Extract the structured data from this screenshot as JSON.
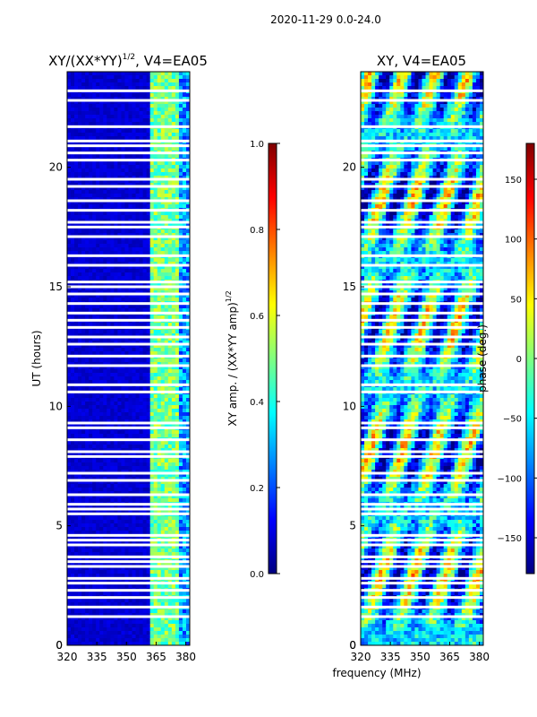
{
  "figure": {
    "suptitle": "2020-11-29 0.0-24.0",
    "shared_xlabel": "frequency (MHz)"
  },
  "chart_data": [
    {
      "type": "heatmap",
      "title_main": "XY/(XX*YY)",
      "title_exp": "1/2",
      "title_tail": ", V4=EA05",
      "xlim": [
        320,
        382
      ],
      "xticks": [
        320,
        335,
        350,
        365,
        380
      ],
      "ylabel": "UT (hours)",
      "ylim": [
        0,
        24
      ],
      "yticks": [
        0,
        5,
        10,
        15,
        20
      ],
      "colorbar": {
        "label_main": "XY amp. / (XX*YY amp)",
        "label_exp": "1/2",
        "range": [
          0.0,
          1.0
        ],
        "ticks": [
          "0.0",
          "0.2",
          "0.4",
          "0.6",
          "0.8",
          "1.0"
        ],
        "tick_values": [
          0.0,
          0.2,
          0.4,
          0.6,
          0.8,
          1.0
        ]
      }
    },
    {
      "type": "heatmap",
      "title": "XY, V4=EA05",
      "xlim": [
        320,
        382
      ],
      "xticks": [
        320,
        335,
        350,
        365,
        380
      ],
      "ylim": [
        0,
        24
      ],
      "yticks": [
        0,
        5,
        10,
        15,
        20
      ],
      "colorbar": {
        "label": "phase (deg.)",
        "range": [
          -180,
          180
        ],
        "ticks": [
          "150",
          "100",
          "50",
          "0",
          "−50",
          "−100",
          "−150"
        ],
        "tick_values": [
          150,
          100,
          50,
          0,
          -50,
          -100,
          -150
        ]
      }
    }
  ],
  "flagged_ut_hours": [
    23.2,
    22.8,
    21.7,
    21.1,
    20.9,
    20.6,
    20.3,
    19.5,
    19.2,
    18.6,
    18.2,
    17.7,
    17.5,
    17.1,
    16.3,
    15.9,
    15.2,
    15.0,
    14.7,
    14.3,
    13.9,
    13.6,
    13.3,
    12.9,
    12.6,
    12.1,
    11.7,
    10.9,
    10.6,
    9.3,
    9.1,
    8.6,
    8.1,
    7.9,
    7.2,
    6.9,
    6.3,
    5.9,
    5.7,
    5.5,
    4.6,
    4.4,
    4.2,
    3.7,
    3.5,
    3.3,
    2.8,
    2.6,
    2.3,
    2.0,
    1.6,
    1.2
  ]
}
